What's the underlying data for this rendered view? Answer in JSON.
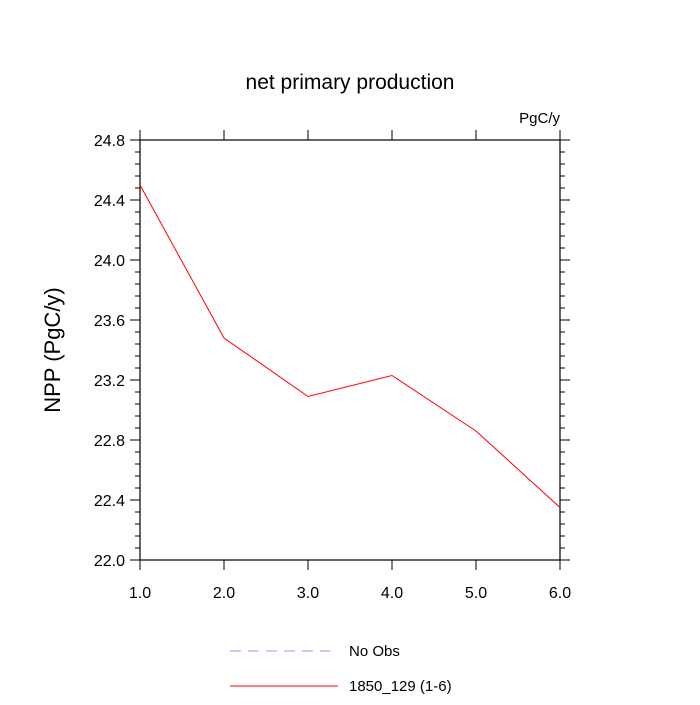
{
  "chart_data": {
    "type": "line",
    "title": "net primary production",
    "units_label": "PgC/y",
    "xlabel": "",
    "ylabel": "NPP  (PgC/y)",
    "xlim": [
      1.0,
      6.0
    ],
    "ylim": [
      22.0,
      24.8
    ],
    "x_ticks": [
      "1.0",
      "2.0",
      "3.0",
      "4.0",
      "5.0",
      "6.0"
    ],
    "y_ticks": [
      "22.0",
      "22.4",
      "22.8",
      "23.2",
      "23.6",
      "24.0",
      "24.4",
      "24.8"
    ],
    "grid": false,
    "legend_position": "bottom-center",
    "series": [
      {
        "name": "1850_129 (1-6)",
        "color": "#ff0000",
        "style": "solid",
        "x": [
          1,
          2,
          3,
          4,
          5,
          6
        ],
        "y": [
          24.5,
          23.48,
          23.09,
          23.23,
          22.86,
          22.35
        ]
      }
    ],
    "legend": [
      {
        "label": "No Obs",
        "color": "#9999ff",
        "style": "dashed"
      },
      {
        "label": "1850_129 (1-6)",
        "color": "#ff0000",
        "style": "solid"
      }
    ]
  }
}
